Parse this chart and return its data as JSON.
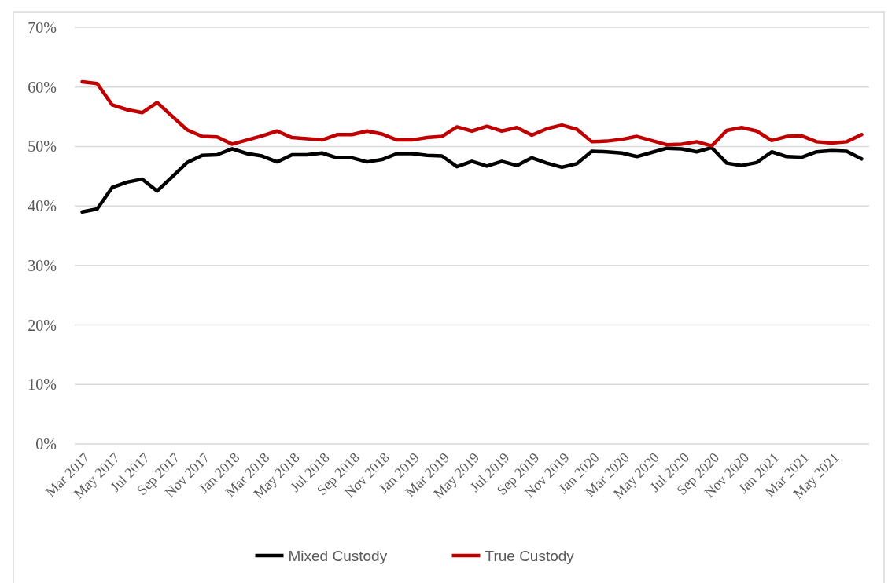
{
  "chart_data": {
    "type": "line",
    "categories": [
      "Mar 2017",
      null,
      "May 2017",
      null,
      "Jul 2017",
      null,
      "Sep 2017",
      null,
      "Nov 2017",
      null,
      "Jan 2018",
      null,
      "Mar 2018",
      null,
      "May 2018",
      null,
      "Jul 2018",
      null,
      "Sep 2018",
      null,
      "Nov 2018",
      null,
      "Jan 2019",
      null,
      "Mar 2019",
      null,
      "May 2019",
      null,
      "Jul 2019",
      null,
      "Sep 2019",
      null,
      "Nov 2019",
      null,
      "Jan 2020",
      null,
      "Mar 2020",
      null,
      "May 2020",
      null,
      "Jul 2020",
      null,
      "Sep 2020",
      null,
      "Nov 2020",
      null,
      "Jan 2021",
      null,
      "Mar 2021",
      null,
      "May 2021",
      null,
      null
    ],
    "series": [
      {
        "name": "Mixed Custody",
        "color": "#000000",
        "values": [
          39.0,
          39.5,
          43.1,
          44.0,
          44.5,
          42.5,
          44.9,
          47.3,
          48.5,
          48.6,
          49.6,
          48.8,
          48.4,
          47.4,
          48.6,
          48.6,
          48.9,
          48.1,
          48.1,
          47.4,
          47.8,
          48.8,
          48.8,
          48.5,
          48.4,
          46.6,
          47.5,
          46.7,
          47.5,
          46.8,
          48.1,
          47.2,
          46.5,
          47.1,
          49.2,
          49.1,
          48.9,
          48.3,
          49.0,
          49.7,
          49.6,
          49.1,
          49.8,
          47.2,
          46.8,
          47.3,
          49.1,
          48.3,
          48.2,
          49.1,
          49.3,
          49.2,
          47.9
        ]
      },
      {
        "name": "True Custody",
        "color": "#c00000",
        "values": [
          60.9,
          60.6,
          57.0,
          56.2,
          55.7,
          57.4,
          55.1,
          52.8,
          51.7,
          51.6,
          50.4,
          51.1,
          51.8,
          52.6,
          51.5,
          51.3,
          51.1,
          52.0,
          52.0,
          52.6,
          52.1,
          51.1,
          51.1,
          51.5,
          51.7,
          53.3,
          52.6,
          53.4,
          52.6,
          53.2,
          51.9,
          53.0,
          53.6,
          52.9,
          50.8,
          50.9,
          51.2,
          51.7,
          51.0,
          50.3,
          50.4,
          50.8,
          50.1,
          52.7,
          53.2,
          52.6,
          51.0,
          51.7,
          51.8,
          50.8,
          50.6,
          50.8,
          52.0
        ]
      }
    ],
    "ylim": [
      0,
      70
    ],
    "yticks": [
      {
        "value": 0,
        "label": "0%"
      },
      {
        "value": 10,
        "label": "10%"
      },
      {
        "value": 20,
        "label": "20%"
      },
      {
        "value": 30,
        "label": "30%"
      },
      {
        "value": 40,
        "label": "40%"
      },
      {
        "value": 50,
        "label": "50%"
      },
      {
        "value": 60,
        "label": "60%"
      },
      {
        "value": 70,
        "label": "70%"
      }
    ],
    "grid": "y",
    "legend": "bottom",
    "marker": "none",
    "line_style": "solid"
  }
}
